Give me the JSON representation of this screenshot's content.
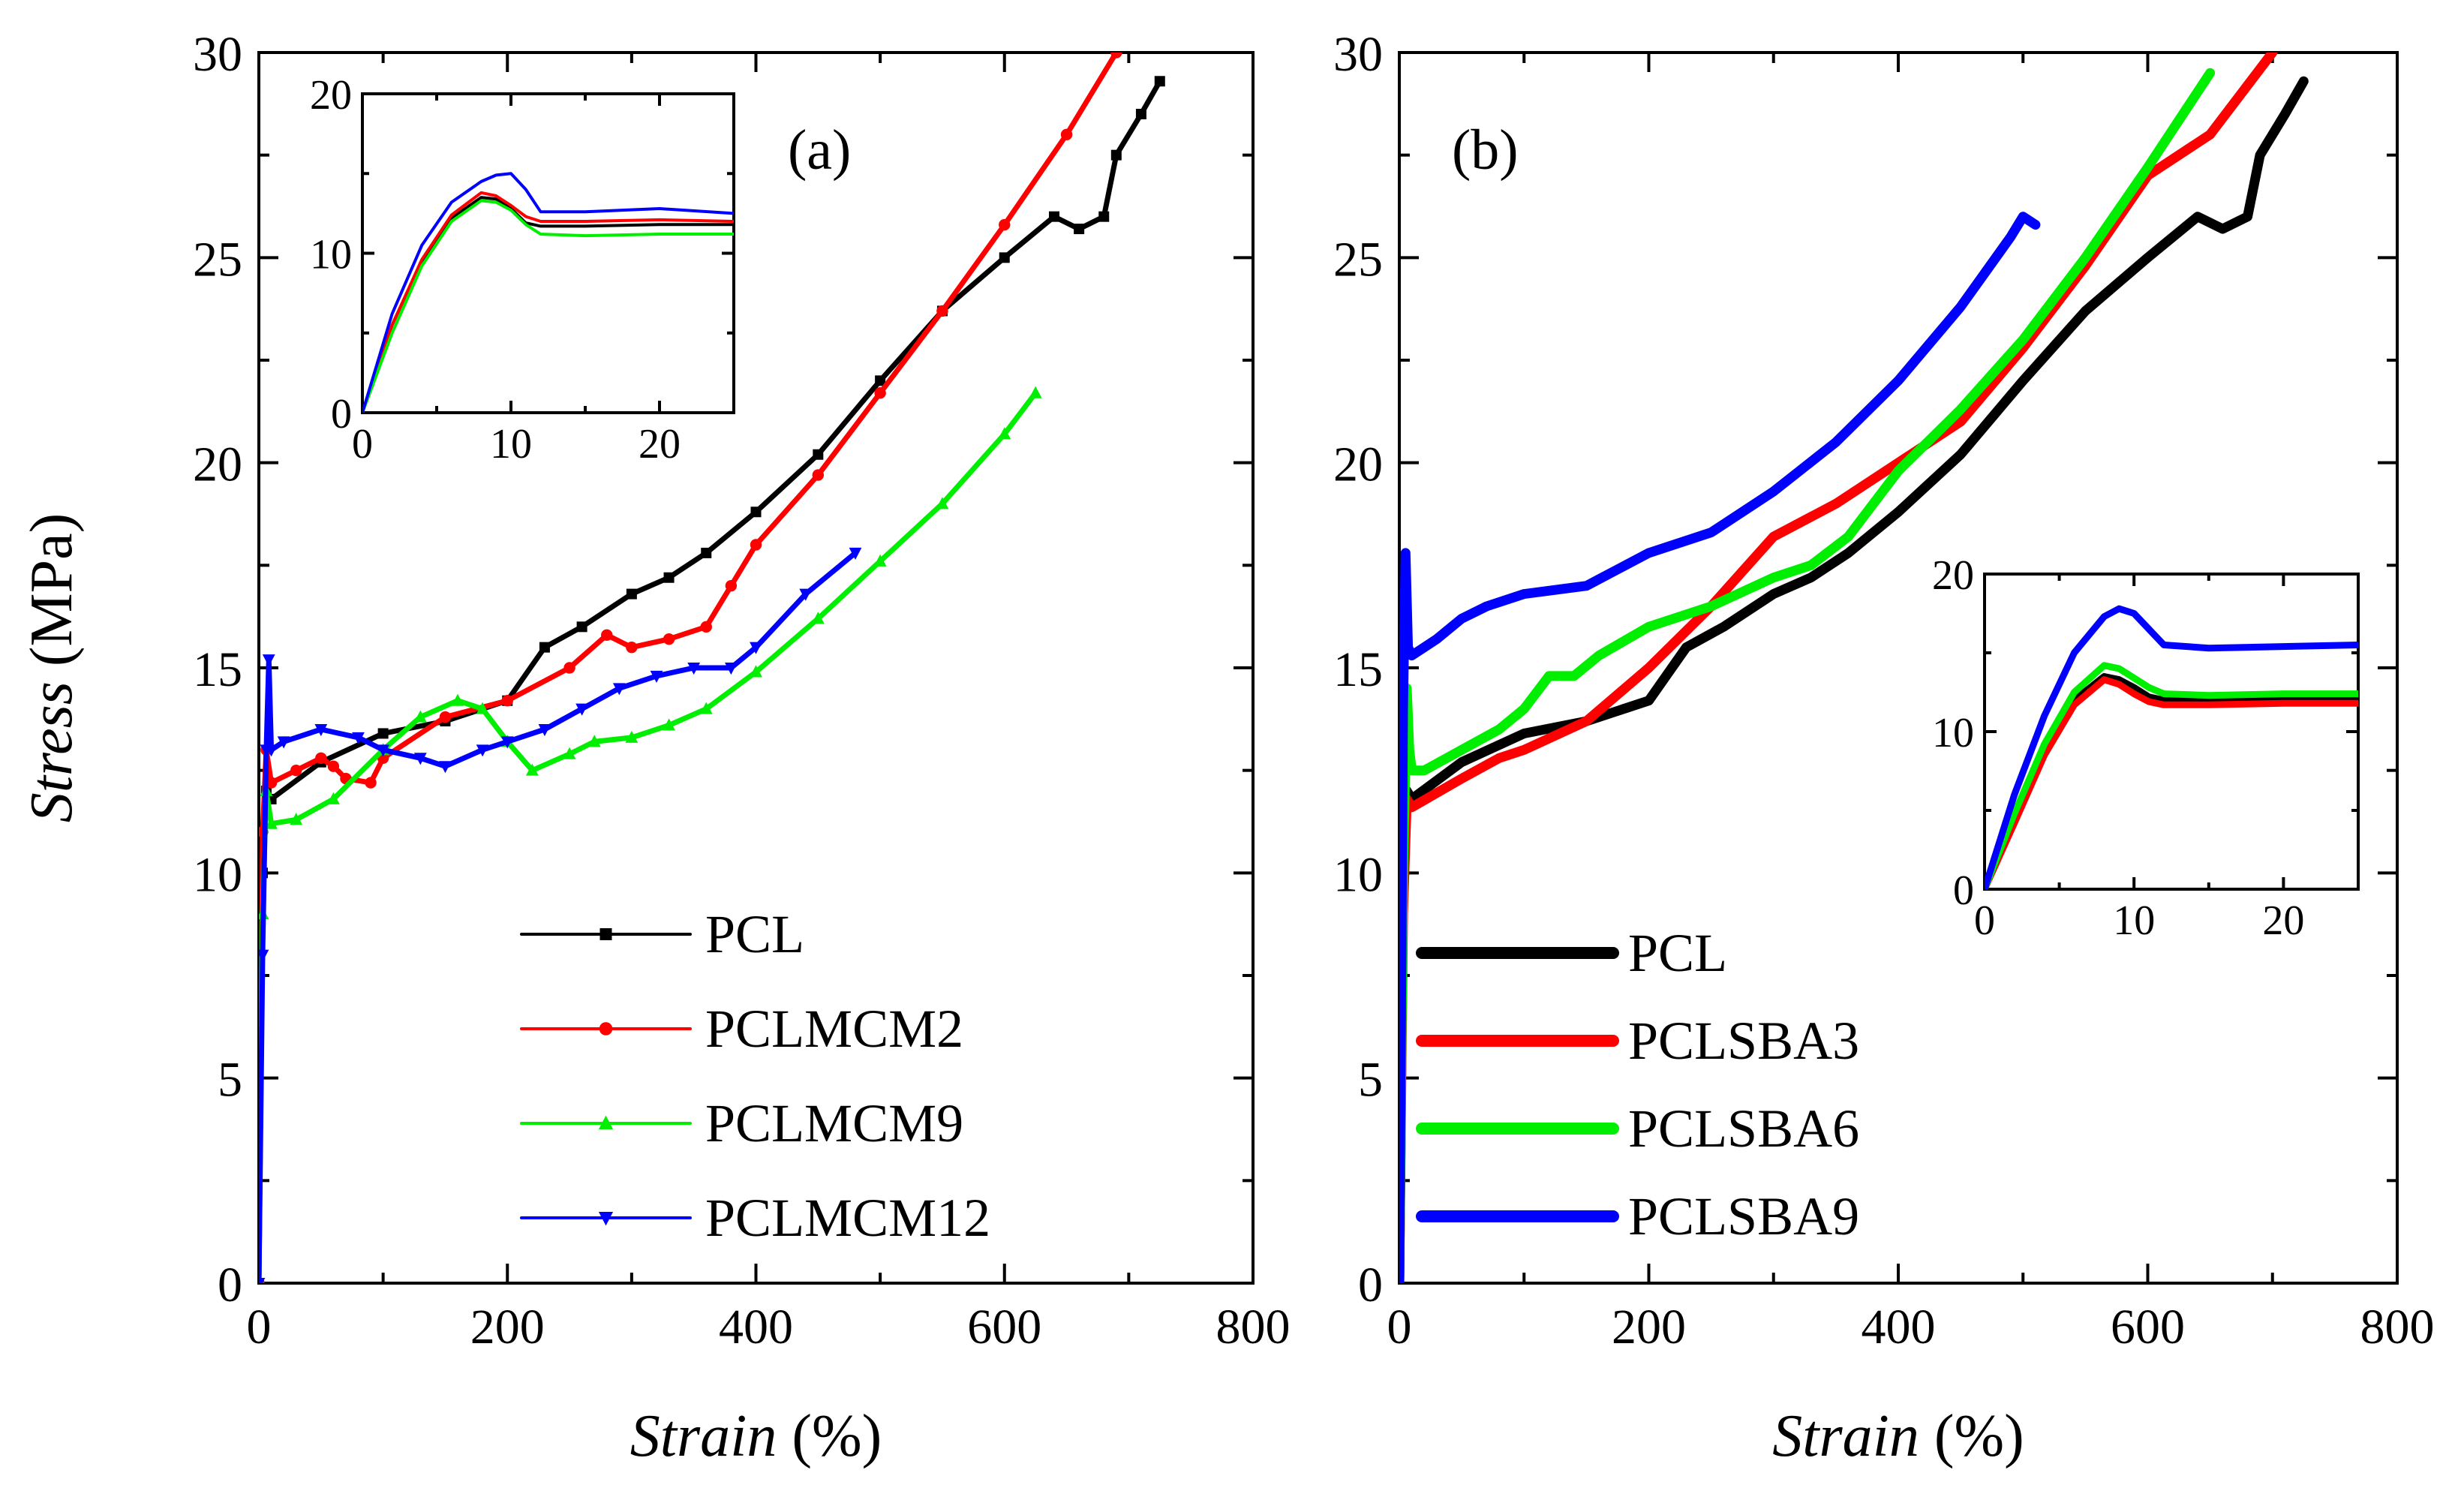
{
  "chart_data": [
    {
      "id": "a",
      "type": "line",
      "panel_label": "(a)",
      "xlabel": "Strain",
      "xlabel_unit": "(%)",
      "ylabel": "Stress",
      "ylabel_unit": "(MPa)",
      "xlim": [
        0,
        800
      ],
      "ylim": [
        0,
        30
      ],
      "xticks": [
        0,
        200,
        400,
        600,
        800
      ],
      "yticks": [
        0,
        5,
        10,
        15,
        20,
        25,
        30
      ],
      "legend_position": "bottom-right",
      "series": [
        {
          "name": "PCL",
          "color": "#000000",
          "marker": "square",
          "x": [
            0,
            3,
            6,
            10,
            50,
            100,
            150,
            200,
            230,
            260,
            300,
            330,
            360,
            400,
            450,
            500,
            550,
            600,
            640,
            660,
            680,
            690,
            710,
            725
          ],
          "y": [
            0,
            10,
            12,
            11.8,
            12.7,
            13.4,
            13.7,
            14.2,
            15.5,
            16,
            16.8,
            17.2,
            17.8,
            18.8,
            20.2,
            22,
            23.7,
            25,
            26,
            25.7,
            26,
            27.5,
            28.5,
            29.3
          ]
        },
        {
          "name": "PCLMCM2",
          "color": "#ff0000",
          "marker": "circle",
          "x": [
            0,
            3,
            6,
            10,
            30,
            50,
            60,
            70,
            90,
            100,
            150,
            200,
            250,
            280,
            300,
            330,
            360,
            380,
            400,
            450,
            500,
            550,
            600,
            650,
            690
          ],
          "y": [
            0,
            11,
            13,
            12.2,
            12.5,
            12.8,
            12.6,
            12.3,
            12.2,
            12.8,
            13.8,
            14.2,
            15,
            15.8,
            15.5,
            15.7,
            16,
            17,
            18,
            19.7,
            21.7,
            23.7,
            25.8,
            28,
            30
          ]
        },
        {
          "name": "PCLMCM9",
          "color": "#00ee00",
          "marker": "triangle-up",
          "x": [
            0,
            3,
            6,
            10,
            30,
            60,
            100,
            130,
            160,
            180,
            200,
            220,
            250,
            270,
            300,
            330,
            360,
            400,
            450,
            500,
            550,
            600,
            625
          ],
          "y": [
            0,
            9,
            12,
            11.2,
            11.3,
            11.8,
            13,
            13.8,
            14.2,
            14,
            13.2,
            12.5,
            12.9,
            13.2,
            13.3,
            13.6,
            14,
            14.9,
            16.2,
            17.6,
            19,
            20.7,
            21.7
          ]
        },
        {
          "name": "PCLMCM12",
          "color": "#0000ff",
          "marker": "triangle-down",
          "x": [
            0,
            3,
            6,
            8,
            10,
            20,
            50,
            80,
            100,
            130,
            150,
            180,
            200,
            230,
            260,
            290,
            320,
            350,
            380,
            400,
            440,
            480
          ],
          "y": [
            0,
            8,
            13,
            15.2,
            13,
            13.2,
            13.5,
            13.3,
            13,
            12.8,
            12.6,
            13,
            13.2,
            13.5,
            14,
            14.5,
            14.8,
            15,
            15,
            15.5,
            16.8,
            17.8
          ]
        }
      ],
      "inset": {
        "xlim": [
          0,
          25
        ],
        "ylim": [
          0,
          20
        ],
        "xticks": [
          0,
          10,
          20
        ],
        "yticks": [
          0,
          10,
          20
        ],
        "position": "top-left",
        "series": [
          {
            "name": "PCL",
            "color": "#000000",
            "x": [
              0,
              2,
              4,
              6,
              8,
              9,
              10,
              11,
              12,
              15,
              20,
              25
            ],
            "y": [
              0,
              5.5,
              9.5,
              12.2,
              13.5,
              13.4,
              12.8,
              11.9,
              11.7,
              11.7,
              11.8,
              11.8
            ]
          },
          {
            "name": "PCLMCM2",
            "color": "#ff0000",
            "x": [
              0,
              2,
              4,
              6,
              8,
              9,
              10,
              11,
              12,
              15,
              20,
              25
            ],
            "y": [
              0,
              5.5,
              9.6,
              12.4,
              13.8,
              13.6,
              13,
              12.3,
              12,
              12,
              12.1,
              12
            ]
          },
          {
            "name": "PCLMCM9",
            "color": "#00ee00",
            "x": [
              0,
              2,
              4,
              6,
              8,
              9,
              10,
              11,
              12,
              15,
              20,
              25
            ],
            "y": [
              0,
              5,
              9.2,
              12,
              13.3,
              13.2,
              12.7,
              11.8,
              11.2,
              11.1,
              11.2,
              11.2
            ]
          },
          {
            "name": "PCLMCM12",
            "color": "#0000ff",
            "x": [
              0,
              2,
              4,
              6,
              8,
              9,
              10,
              11,
              12,
              15,
              20,
              25
            ],
            "y": [
              0,
              6.2,
              10.5,
              13.2,
              14.5,
              14.9,
              15,
              14,
              12.6,
              12.6,
              12.8,
              12.5
            ]
          }
        ]
      }
    },
    {
      "id": "b",
      "type": "line",
      "panel_label": "(b)",
      "xlabel": "Strain",
      "xlabel_unit": "(%)",
      "xlim": [
        0,
        800
      ],
      "ylim": [
        0,
        30
      ],
      "xticks": [
        0,
        200,
        400,
        600,
        800
      ],
      "yticks": [
        0,
        5,
        10,
        15,
        20,
        25,
        30
      ],
      "legend_position": "bottom-left",
      "series": [
        {
          "name": "PCL",
          "color": "#000000",
          "x": [
            0,
            3,
            6,
            10,
            50,
            100,
            150,
            200,
            230,
            260,
            300,
            330,
            360,
            400,
            450,
            500,
            550,
            600,
            640,
            660,
            680,
            690,
            710,
            725
          ],
          "y": [
            0,
            10,
            12,
            11.8,
            12.7,
            13.4,
            13.7,
            14.2,
            15.5,
            16,
            16.8,
            17.2,
            17.8,
            18.8,
            20.2,
            22,
            23.7,
            25,
            26,
            25.7,
            26,
            27.5,
            28.5,
            29.3
          ]
        },
        {
          "name": "PCLSBA3",
          "color": "#ff0000",
          "x": [
            0,
            3,
            6,
            10,
            50,
            80,
            100,
            150,
            200,
            250,
            300,
            350,
            400,
            450,
            500,
            550,
            600,
            650,
            700
          ],
          "y": [
            0,
            9,
            11.8,
            11.6,
            12.3,
            12.8,
            13,
            13.7,
            15,
            16.5,
            18.2,
            19,
            20,
            21,
            22.8,
            24.8,
            27,
            28,
            30
          ]
        },
        {
          "name": "PCLSBA6",
          "color": "#00ee00",
          "x": [
            0,
            3,
            6,
            8,
            10,
            20,
            50,
            80,
            100,
            120,
            140,
            160,
            200,
            250,
            300,
            330,
            360,
            400,
            450,
            500,
            550,
            600,
            650
          ],
          "y": [
            0,
            10,
            14.5,
            13,
            12.5,
            12.5,
            13,
            13.5,
            14,
            14.8,
            14.8,
            15.3,
            16,
            16.5,
            17.2,
            17.5,
            18.2,
            19.8,
            21.3,
            23,
            25,
            27.2,
            29.5
          ]
        },
        {
          "name": "PCLSBA9",
          "color": "#0000ff",
          "x": [
            0,
            3,
            5,
            7,
            10,
            30,
            50,
            70,
            100,
            150,
            200,
            250,
            300,
            350,
            400,
            450,
            490,
            500,
            510
          ],
          "y": [
            0,
            14,
            17.8,
            15.5,
            15.3,
            15.7,
            16.2,
            16.5,
            16.8,
            17,
            17.8,
            18.3,
            19.3,
            20.5,
            22,
            23.8,
            25.5,
            26,
            25.8
          ]
        }
      ],
      "inset": {
        "xlim": [
          0,
          25
        ],
        "ylim": [
          0,
          20
        ],
        "xticks": [
          0,
          10,
          20
        ],
        "yticks": [
          0,
          10,
          20
        ],
        "position": "lower-right",
        "series": [
          {
            "name": "PCL",
            "color": "#000000",
            "x": [
              0,
              2,
              4,
              6,
              8,
              9,
              10,
              11,
              12,
              15,
              20,
              25
            ],
            "y": [
              0,
              4.5,
              8.8,
              12,
              13.5,
              13.3,
              12.8,
              12.2,
              12,
              12,
              12,
              12
            ]
          },
          {
            "name": "PCLSBA3",
            "color": "#ff0000",
            "x": [
              0,
              2,
              4,
              6,
              8,
              9,
              10,
              11,
              12,
              15,
              20,
              25
            ],
            "y": [
              0,
              4.2,
              8.5,
              11.7,
              13.3,
              13,
              12.4,
              11.9,
              11.7,
              11.7,
              11.8,
              11.8
            ]
          },
          {
            "name": "PCLSBA6",
            "color": "#00ee00",
            "x": [
              0,
              2,
              4,
              6,
              8,
              9,
              10,
              11,
              12,
              15,
              20,
              25
            ],
            "y": [
              0,
              4.8,
              9.2,
              12.5,
              14.2,
              14,
              13.4,
              12.8,
              12.4,
              12.3,
              12.4,
              12.4
            ]
          },
          {
            "name": "PCLSBA9",
            "color": "#0000ff",
            "x": [
              0,
              2,
              4,
              6,
              8,
              9,
              10,
              11,
              12,
              15,
              20,
              25
            ],
            "y": [
              0,
              6,
              11,
              15,
              17.3,
              17.8,
              17.5,
              16.5,
              15.5,
              15.3,
              15.4,
              15.5
            ]
          }
        ]
      }
    }
  ]
}
